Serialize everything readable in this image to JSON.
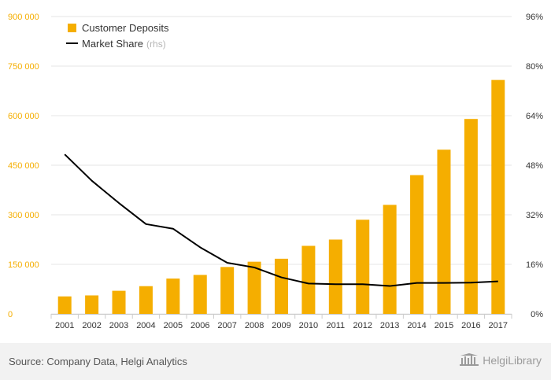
{
  "chart_data": {
    "type": "bar+line",
    "categories": [
      "2001",
      "2002",
      "2003",
      "2004",
      "2005",
      "2006",
      "2007",
      "2008",
      "2009",
      "2010",
      "2011",
      "2012",
      "2013",
      "2014",
      "2015",
      "2016",
      "2017"
    ],
    "series": [
      {
        "name": "Customer Deposits",
        "type": "bar",
        "axis": "left",
        "color": "#f5ae00",
        "values": [
          53000,
          56000,
          70000,
          84000,
          107000,
          118000,
          142000,
          158000,
          167000,
          206000,
          225000,
          285000,
          330000,
          420000,
          497000,
          590000,
          708000
        ]
      },
      {
        "name": "Market Share",
        "type": "line",
        "axis": "right",
        "color": "#000000",
        "values": [
          51.5,
          43.0,
          35.8,
          29.0,
          27.5,
          21.5,
          16.5,
          15.0,
          11.8,
          9.8,
          9.6,
          9.6,
          9.0,
          10.0,
          10.0,
          10.1,
          10.5
        ]
      }
    ],
    "y_left": {
      "min": 0,
      "max": 900000,
      "ticks": [
        0,
        150000,
        300000,
        450000,
        600000,
        750000,
        900000
      ],
      "tick_labels": [
        "0",
        "150 000",
        "300 000",
        "450 000",
        "600 000",
        "750 000",
        "900 000"
      ],
      "color": "#f5ae00"
    },
    "y_right": {
      "min": 0,
      "max": 96,
      "ticks": [
        0,
        16,
        32,
        48,
        64,
        80,
        96
      ],
      "tick_labels": [
        "0%",
        "16%",
        "32%",
        "48%",
        "64%",
        "80%",
        "96%"
      ]
    },
    "legend": {
      "placement": "top-left",
      "items": [
        {
          "label": "Customer Deposits",
          "suffix": ""
        },
        {
          "label": "Market Share",
          "suffix": "(rhs)"
        }
      ]
    },
    "grid": true
  },
  "footer": {
    "source": "Source: Company Data, Helgi Analytics",
    "brand_name": "HelgiLibrary"
  },
  "colors": {
    "bar": "#f5ae00",
    "line": "#000000",
    "grid": "#e6e6e6",
    "footer_bg": "#f2f2f2"
  }
}
